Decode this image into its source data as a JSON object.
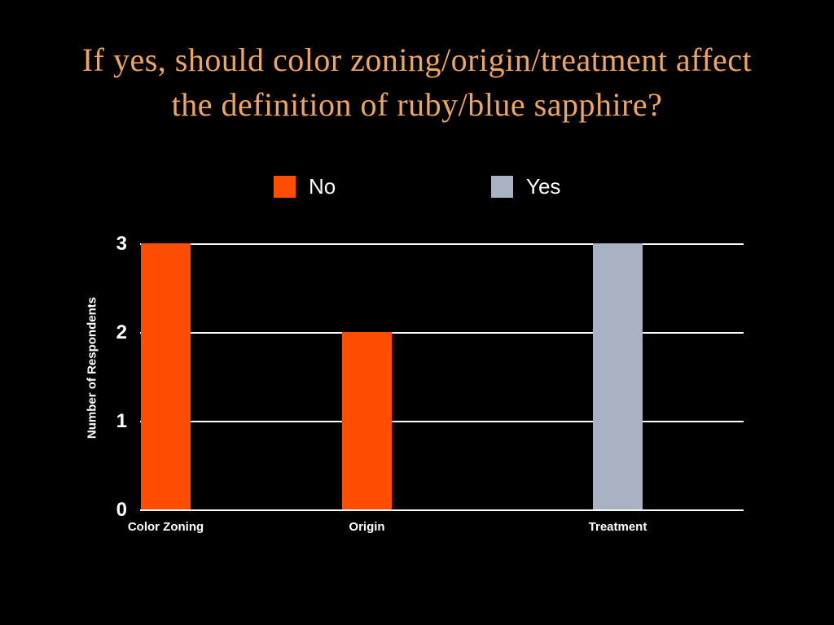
{
  "slide": {
    "background_color": "#000000",
    "title_color": "#EDA75D",
    "title_lines": [
      "If yes, should color zoning/origin/treatment affect",
      "the definition of ruby/blue sapphire?"
    ]
  },
  "chart_data": {
    "type": "bar",
    "title": "If yes, should color zoning/origin/treatment affect the definition of ruby/blue sapphire?",
    "categories": [
      "Color Zoning",
      "Origin",
      "Treatment"
    ],
    "series": [
      {
        "name": "No",
        "color": "#FF4D00",
        "values": [
          3,
          2,
          null
        ]
      },
      {
        "name": "Yes",
        "color": "#A9B2C3",
        "values": [
          null,
          null,
          3
        ]
      }
    ],
    "xlabel": "",
    "ylabel": "Number of Respondents",
    "ylim": [
      0,
      3
    ],
    "yticks": [
      0,
      1,
      2,
      3
    ],
    "grid": true,
    "gridline_color": "#FFFFFF",
    "text_color": "#FFFFFF",
    "legend_position": "top"
  }
}
